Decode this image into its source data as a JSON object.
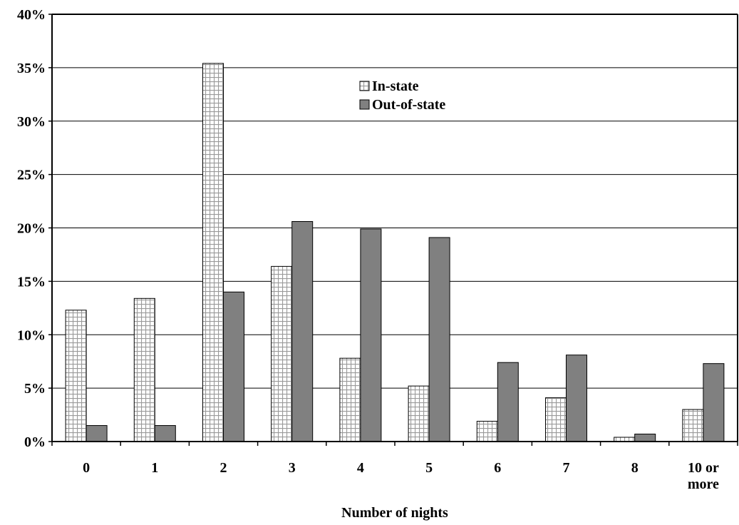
{
  "chart_data": {
    "type": "bar",
    "title": "",
    "xlabel": "Number of nights",
    "ylabel": "",
    "categories": [
      "0",
      "1",
      "2",
      "3",
      "4",
      "5",
      "6",
      "7",
      "8",
      "10 or more"
    ],
    "category_lines": [
      [
        "0"
      ],
      [
        "1"
      ],
      [
        "2"
      ],
      [
        "3"
      ],
      [
        "4"
      ],
      [
        "5"
      ],
      [
        "6"
      ],
      [
        "7"
      ],
      [
        "8"
      ],
      [
        "10 or",
        "more"
      ]
    ],
    "series": [
      {
        "name": "In-state",
        "values": [
          12.3,
          13.4,
          35.4,
          16.4,
          7.8,
          5.2,
          1.9,
          4.1,
          0.4,
          3.0
        ],
        "color": "#ffffff",
        "pattern": "grid",
        "pattern_color": "#9a9a9a"
      },
      {
        "name": "Out-of-state",
        "values": [
          1.5,
          1.5,
          14.0,
          20.6,
          19.9,
          19.1,
          7.4,
          8.1,
          0.7,
          7.3
        ],
        "color": "#808080",
        "pattern": "solid"
      }
    ],
    "ylim": [
      0,
      40
    ],
    "yticks": [
      0,
      5,
      10,
      15,
      20,
      25,
      30,
      35,
      40
    ],
    "ytick_labels": [
      "0%",
      "5%",
      "10%",
      "15%",
      "20%",
      "25%",
      "30%",
      "35%",
      "40%"
    ],
    "grid": true,
    "legend_position": "top-center"
  }
}
